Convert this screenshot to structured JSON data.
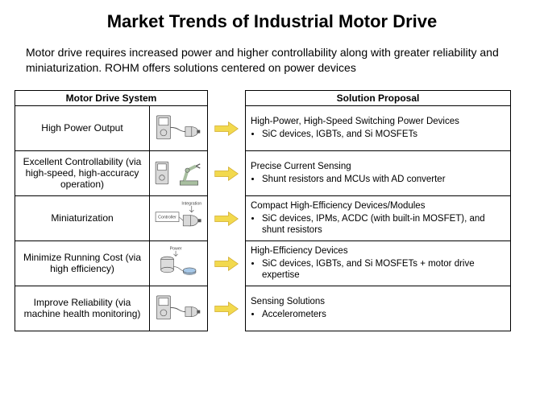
{
  "title": "Market Trends of Industrial Motor Drive",
  "subtitle": "Motor drive requires increased power and higher controllability along with greater reliability and miniaturization. ROHM offers solutions centered on power devices",
  "headers": {
    "left": "Motor Drive System",
    "right": "Solution Proposal"
  },
  "arrow": {
    "fill": "#f2d94e",
    "stroke": "#c9a227",
    "stroke_width": 1
  },
  "icon_colors": {
    "box_fill": "#d9d9d9",
    "box_stroke": "#555555",
    "accent_green": "#a8bfa0",
    "wire": "#555555",
    "cyl_fill": "#dcdcdc",
    "blue_disk": "#a6c8e8"
  },
  "rows": [
    {
      "label": "High Power Output",
      "icon_type": "drive-motor",
      "solution_head": "High-Power, High-Speed Switching Power Devices",
      "bullets": [
        "SiC devices, IGBTs, and Si MOSFETs"
      ]
    },
    {
      "label": "Excellent Controllability (via high-speed, high-accuracy operation)",
      "icon_type": "robot-arm",
      "solution_head": "Precise Current Sensing",
      "bullets": [
        "Shunt resistors and MCUs with AD converter"
      ]
    },
    {
      "label": "Miniaturization",
      "icon_type": "integration",
      "icon_labels": {
        "top": "Integration",
        "box": "Controller"
      },
      "solution_head": "Compact High-Efficiency Devices/Modules",
      "bullets": [
        "SiC devices, IPMs, ACDC (with built-in MOSFET), and shunt resistors"
      ]
    },
    {
      "label": "Minimize Running Cost (via high efficiency)",
      "icon_type": "power",
      "icon_labels": {
        "top": "Power"
      },
      "solution_head": "High-Efficiency Devices",
      "bullets": [
        "SiC devices, IGBTs, and Si MOSFETs + motor drive expertise"
      ]
    },
    {
      "label": "Improve Reliability (via machine health monitoring)",
      "icon_type": "drive-motor",
      "solution_head": "Sensing Solutions",
      "bullets": [
        "Accelerometers"
      ]
    }
  ]
}
